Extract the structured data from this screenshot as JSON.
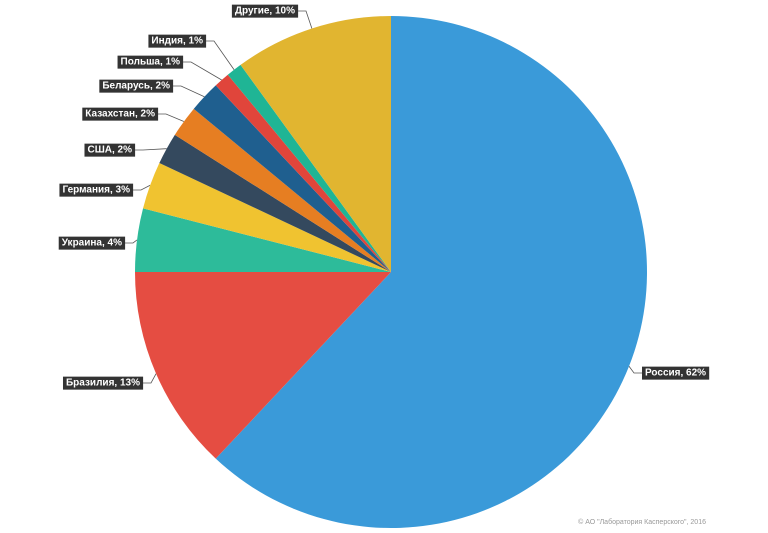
{
  "chart_data": {
    "type": "pie",
    "values": [
      62,
      13,
      4,
      3,
      2,
      2,
      2,
      1,
      1,
      10
    ],
    "value_labels": [
      "Россия, 62%",
      "Бразилия, 13%",
      "Украина, 4%",
      "Германия, 3%",
      "США, 2%",
      "Казахстан, 2%",
      "Беларусь, 2%",
      "Польша, 1%",
      "Индия, 1%",
      "Другие, 10%"
    ],
    "colors": [
      "#3a9ad9",
      "#e54d42",
      "#2dbb9a",
      "#f0c330",
      "#34495e",
      "#e67e22",
      "#1f5f8f",
      "#e0453b",
      "#1fb595",
      "#e1b530"
    ],
    "credit": "© АО \"Лаборатория Касперского\", 2016"
  }
}
